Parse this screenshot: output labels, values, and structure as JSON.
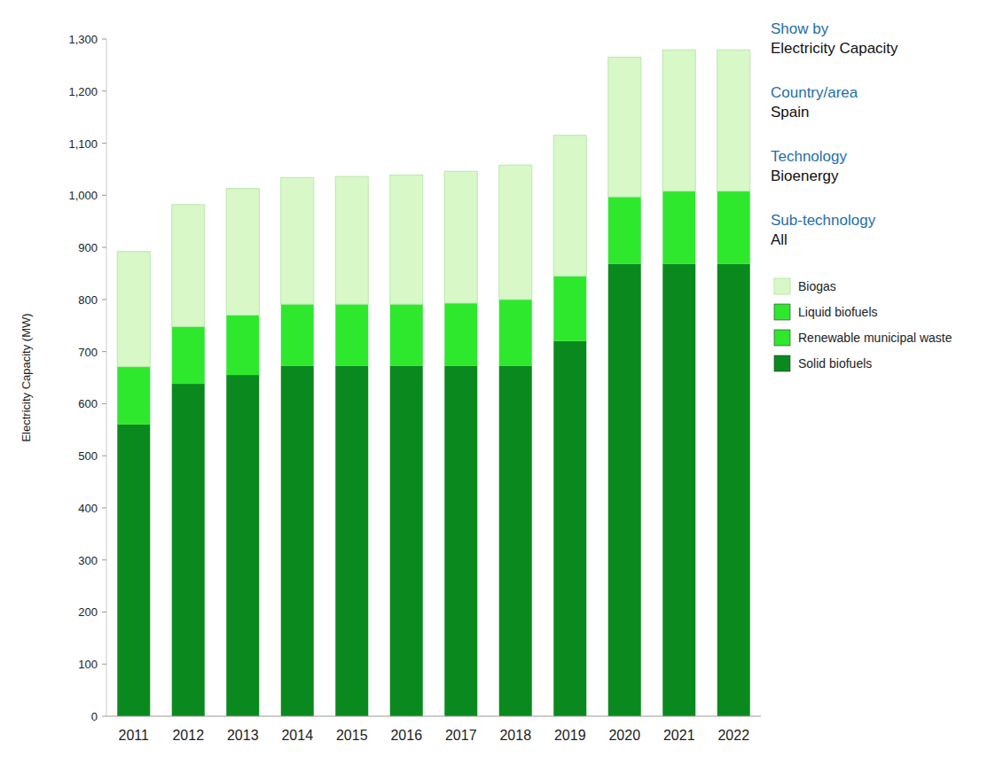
{
  "chart_data": {
    "type": "bar",
    "stacked": true,
    "grid": false,
    "legend": "right",
    "y_label": "Electricity Capacity (MW)",
    "categories": [
      "2011",
      "2012",
      "2013",
      "2014",
      "2015",
      "2016",
      "2017",
      "2018",
      "2019",
      "2020",
      "2021",
      "2022"
    ],
    "series": [
      {
        "name": "Biogas",
        "color": "#d8f8c8",
        "values": [
          221,
          234,
          243,
          243,
          245,
          248,
          253,
          258,
          270,
          268,
          271,
          271
        ]
      },
      {
        "name": "Liquid biofuels",
        "color": "#2ee82e",
        "values": [
          0,
          0,
          0,
          0,
          0,
          0,
          0,
          0,
          0,
          0,
          0,
          0
        ]
      },
      {
        "name": "Renewable municipal waste",
        "color": "#2ee82e",
        "values": [
          111,
          110,
          115,
          118,
          118,
          118,
          120,
          127,
          125,
          129,
          140,
          140
        ]
      },
      {
        "name": "Solid biofuels",
        "color": "#0a8a1e",
        "values": [
          560,
          638,
          655,
          673,
          673,
          673,
          673,
          673,
          720,
          868,
          868,
          868
        ]
      }
    ],
    "ylim": [
      0,
      1300
    ],
    "yticks": [
      0,
      100,
      200,
      300,
      400,
      500,
      600,
      700,
      800,
      900,
      {
        "value": 1000,
        "label": "1,000"
      },
      {
        "value": 1100,
        "label": "1,100"
      },
      {
        "value": 1200,
        "label": "1,200"
      },
      {
        "value": 1300,
        "label": "1,300"
      }
    ],
    "annotations": [
      {
        "label": "Show by",
        "value": "Electricity Capacity"
      },
      {
        "label": "Country/area",
        "value": "Spain"
      },
      {
        "label": "Technology",
        "value": "Bioenergy"
      },
      {
        "label": "Sub-technology",
        "value": "All"
      }
    ]
  }
}
